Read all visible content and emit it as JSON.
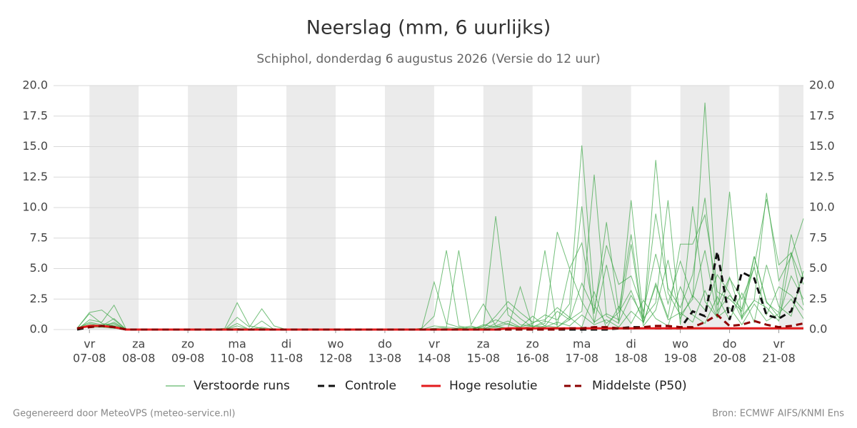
{
  "chart_data": {
    "type": "line",
    "title": "Neerslag (mm, 6 uurlijks)",
    "subtitle": "Schiphol, donderdag  6 augustus 2026 (Versie do 12 uur)",
    "credit": "Gegenereerd door MeteoVPS (meteo-service.nl)",
    "source": "Bron: ECMWF AIFS/KNMI Ens",
    "categories": [
      null,
      [
        "vr",
        "07-08"
      ],
      null,
      null,
      null,
      [
        "za",
        "08-08"
      ],
      null,
      null,
      null,
      [
        "zo",
        "09-08"
      ],
      null,
      null,
      null,
      [
        "ma",
        "10-08"
      ],
      null,
      null,
      null,
      [
        "di",
        "11-08"
      ],
      null,
      null,
      null,
      [
        "wo",
        "12-08"
      ],
      null,
      null,
      null,
      [
        "do",
        "13-08"
      ],
      null,
      null,
      null,
      [
        "vr",
        "14-08"
      ],
      null,
      null,
      null,
      [
        "za",
        "15-08"
      ],
      null,
      null,
      null,
      [
        "zo",
        "16-08"
      ],
      null,
      null,
      null,
      [
        "ma",
        "17-08"
      ],
      null,
      null,
      null,
      [
        "di",
        "18-08"
      ],
      null,
      null,
      null,
      [
        "wo",
        "19-08"
      ],
      null,
      null,
      null,
      [
        "do",
        "20-08"
      ],
      null,
      null,
      null,
      [
        "vr",
        "21-08"
      ],
      null,
      null
    ],
    "ylim": [
      0,
      20
    ],
    "yticks": [
      {
        "value": 0,
        "label": "0.0"
      },
      2.5,
      {
        "value": 5,
        "label": "5.0"
      },
      7.5,
      {
        "value": 10,
        "label": "10.0"
      },
      12.5,
      {
        "value": 15,
        "label": "15.0"
      },
      17.5,
      {
        "value": 20,
        "label": "20.0"
      }
    ],
    "grid": true,
    "legend": "bottom",
    "ensemble": {
      "name": "Verstoorde runs",
      "color": "#3aa545",
      "members": [
        [
          0.1,
          1.4,
          1.6,
          0.8,
          0,
          0,
          0,
          0,
          0,
          0,
          0,
          0,
          0.1,
          2.2,
          0.3,
          0.1,
          0,
          0,
          0,
          0,
          0,
          0,
          0,
          0,
          0,
          0,
          0,
          0,
          0.1,
          3.9,
          0.5,
          0.2,
          0,
          0.3,
          0.8,
          0.4,
          0.2,
          0.5,
          1.2,
          0.8,
          2.1,
          15.1,
          2.0,
          0.5,
          1.4,
          3.2,
          0.6,
          13.9,
          3.0,
          1.2,
          2.5,
          18.6,
          2.0,
          4.3,
          1.1,
          2.4,
          11.2,
          4.0,
          6.0,
          9.1
        ],
        [
          0,
          0.8,
          0.6,
          2.0,
          0,
          0,
          0,
          0,
          0,
          0,
          0,
          0,
          0,
          1.0,
          0.2,
          1.7,
          0.3,
          0,
          0,
          0,
          0,
          0,
          0,
          0,
          0,
          0,
          0,
          0,
          0.1,
          1.1,
          6.5,
          0.3,
          0.1,
          0.2,
          9.3,
          1.2,
          0.4,
          0.3,
          6.5,
          0.2,
          0.8,
          1.5,
          12.7,
          1.1,
          0.5,
          10.6,
          0.9,
          2.2,
          10.6,
          0.4,
          10.1,
          2.3,
          1.0,
          11.3,
          0.8,
          6.0,
          2.2,
          1.4,
          7.8,
          4.2
        ],
        [
          0.1,
          1.3,
          0.5,
          0.3,
          0,
          0,
          0,
          0,
          0,
          0,
          0,
          0,
          0,
          0.5,
          0,
          0.2,
          0,
          0,
          0,
          0,
          0,
          0,
          0,
          0,
          0,
          0,
          0,
          0,
          0,
          0.3,
          0.2,
          6.5,
          0.4,
          2.1,
          0.3,
          0.1,
          3.5,
          0.2,
          0.5,
          8.0,
          5.0,
          7.1,
          1.3,
          8.8,
          1.5,
          7.8,
          0.5,
          3.8,
          1.0,
          7.0,
          7.0,
          9.4,
          3.1,
          2.5,
          1.5,
          5.2,
          10.7,
          5.3,
          6.3,
          2.0
        ],
        [
          0.1,
          0.5,
          0.3,
          0.9,
          0,
          0,
          0,
          0,
          0,
          0,
          0,
          0,
          0,
          0.3,
          0,
          0.7,
          0,
          0,
          0,
          0,
          0,
          0,
          0,
          0,
          0,
          0,
          0,
          0,
          0,
          0,
          0.1,
          0,
          0.2,
          0.1,
          1.1,
          2.3,
          1.4,
          0.6,
          0.8,
          1.8,
          1.0,
          10.1,
          0.5,
          5.3,
          0.6,
          2.8,
          1.0,
          9.5,
          3.4,
          1.8,
          4.5,
          10.8,
          1.5,
          2.8,
          1.7,
          6.0,
          2.3,
          1.0,
          4.4,
          2.5
        ],
        [
          0.1,
          0.3,
          0.2,
          0.1,
          0,
          0,
          0,
          0,
          0,
          0,
          0,
          0,
          0,
          0.1,
          0,
          0,
          0,
          0,
          0,
          0,
          0,
          0,
          0,
          0,
          0,
          0,
          0,
          0,
          0,
          0,
          0,
          0.1,
          0,
          0.1,
          0.3,
          0.7,
          0.2,
          1.1,
          0.3,
          1.5,
          0.8,
          3.8,
          1.6,
          6.9,
          3.7,
          4.4,
          1.5,
          6.2,
          2.1,
          5.6,
          2.6,
          6.5,
          1.0,
          4.2,
          2.5,
          5.1,
          1.2,
          3.5,
          2.8,
          1.6
        ],
        [
          0.1,
          0.6,
          0.4,
          0.5,
          0,
          0,
          0,
          0,
          0,
          0,
          0,
          0,
          0,
          0,
          0,
          0,
          0,
          0,
          0,
          0,
          0,
          0,
          0,
          0,
          0,
          0,
          0,
          0,
          0,
          0.1,
          0.2,
          0.1,
          0.3,
          0,
          0.5,
          1.8,
          0.9,
          0.2,
          0.7,
          0.4,
          4.9,
          2.3,
          0.6,
          1.3,
          0.8,
          7.0,
          0.3,
          1.6,
          5.7,
          0.9,
          2.8,
          1.6,
          4.5,
          3.0,
          0.9,
          2.4,
          1.8,
          0.7,
          6.3,
          3.7
        ],
        [
          0.1,
          0.4,
          0.3,
          0.4,
          0,
          0,
          0,
          0,
          0,
          0,
          0,
          0,
          0,
          0,
          0,
          0,
          0,
          0,
          0,
          0,
          0,
          0,
          0,
          0,
          0,
          0,
          0,
          0,
          0,
          0,
          0,
          0,
          0,
          0.4,
          0.2,
          0.5,
          0.1,
          0.3,
          0.2,
          0.6,
          0.3,
          1.2,
          0.4,
          0.8,
          0.2,
          1.5,
          0.6,
          3.6,
          0.8,
          1.4,
          0.6,
          3.2,
          1.0,
          1.8,
          0.4,
          2.1,
          0.7,
          1.3,
          2.5,
          0.9
        ],
        [
          0.1,
          0.2,
          0.2,
          0.6,
          0,
          0,
          0,
          0,
          0,
          0,
          0,
          0,
          0,
          0,
          0,
          0,
          0,
          0,
          0,
          0,
          0,
          0,
          0,
          0,
          0,
          0,
          0,
          0,
          0,
          0,
          0,
          0.1,
          0,
          0,
          0.2,
          0.1,
          0,
          0.1,
          0.3,
          0.2,
          1.0,
          0.2,
          3.1,
          0.1,
          1.9,
          0.5,
          2.4,
          0.9,
          0.3,
          3.5,
          1.2,
          0.5,
          2.7,
          0.8,
          3.0,
          0.6,
          5.3,
          1.9,
          1.1,
          4.8
        ]
      ]
    },
    "series": [
      {
        "name": "Controle",
        "color": "#111111",
        "linestyle": "dashed",
        "values": [
          0,
          0.2,
          0.3,
          0.2,
          0,
          0,
          0,
          0,
          0,
          0,
          0,
          0,
          0,
          0,
          0,
          0,
          0,
          0,
          0,
          0,
          0,
          0,
          0,
          0,
          0,
          0,
          0,
          0,
          0,
          0,
          0,
          0,
          0,
          0,
          0,
          0,
          0,
          0,
          0,
          0,
          0,
          0,
          0,
          0,
          0.1,
          0.2,
          0.2,
          0.1,
          0.1,
          0.1,
          1.5,
          1.1,
          6.4,
          0.8,
          4.7,
          4.2,
          1.2,
          0.9,
          1.5,
          4.5
        ]
      },
      {
        "name": "Hoge resolutie",
        "color": "#e31a1c",
        "linestyle": "solid",
        "values": [
          0.1,
          0.3,
          0.3,
          0.2,
          0,
          0,
          0,
          0,
          0,
          0,
          0,
          0,
          0,
          0,
          0,
          0,
          0,
          0,
          0,
          0,
          0,
          0,
          0,
          0,
          0,
          0,
          0,
          0,
          0,
          0,
          0,
          0,
          0,
          0,
          0,
          0.1,
          0.1,
          0.1,
          0.1,
          0.1,
          0.1,
          0.1,
          0.1,
          0.1,
          0.1,
          0.1,
          0.1,
          0.1,
          0.1,
          0.1,
          0.1,
          0.1,
          0.1,
          0.1,
          0.1,
          0.1,
          0.1,
          0.1,
          0.1,
          0.1
        ]
      },
      {
        "name": "Middelste (P50)",
        "color": "#8b0000",
        "linestyle": "dashed",
        "values": [
          0.1,
          0.2,
          0.3,
          0.2,
          0,
          0,
          0,
          0,
          0,
          0,
          0,
          0,
          0,
          0,
          0,
          0,
          0,
          0,
          0,
          0,
          0,
          0,
          0,
          0,
          0,
          0,
          0,
          0,
          0,
          0,
          0,
          0,
          0,
          0,
          0,
          0,
          0,
          0,
          0,
          0,
          0.1,
          0.1,
          0.2,
          0.2,
          0.1,
          0.1,
          0.2,
          0.3,
          0.3,
          0.2,
          0.2,
          0.6,
          1.2,
          0.3,
          0.4,
          0.7,
          0.4,
          0.2,
          0.3,
          0.5
        ]
      }
    ]
  }
}
